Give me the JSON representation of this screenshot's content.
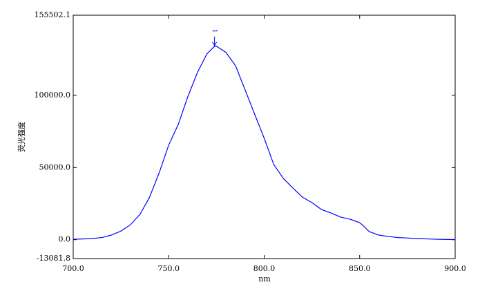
{
  "chart_data": {
    "type": "line",
    "x_label": "nm",
    "y_label": "荧光强度",
    "x": [
      700,
      705,
      710,
      715,
      720,
      725,
      730,
      735,
      740,
      745,
      750,
      755,
      760,
      765,
      770,
      774,
      775,
      780,
      785,
      790,
      795,
      800,
      805,
      810,
      815,
      820,
      825,
      830,
      835,
      840,
      845,
      850,
      852,
      855,
      860,
      865,
      870,
      880,
      890,
      900
    ],
    "series": [
      {
        "color": "#0000ff",
        "values": [
          300,
          500,
          800,
          1500,
          3200,
          6000,
          10400,
          17600,
          29500,
          46300,
          65500,
          79800,
          99000,
          115700,
          128700,
          134000,
          134000,
          129700,
          120500,
          103800,
          87000,
          70300,
          52100,
          42500,
          35800,
          29500,
          25700,
          20900,
          18500,
          15700,
          14200,
          11800,
          9600,
          5600,
          3200,
          2200,
          1500,
          800,
          300,
          100
        ]
      }
    ],
    "annotation": {
      "text": "1",
      "x": 774,
      "y": 134000
    },
    "xlim": [
      700,
      900
    ],
    "xticks": [
      {
        "value": 700,
        "label": "700.0"
      },
      {
        "value": 750,
        "label": "750.0"
      },
      {
        "value": 800,
        "label": "800.0"
      },
      {
        "value": 850,
        "label": "850.0"
      },
      {
        "value": 900,
        "label": "900.0"
      }
    ],
    "ylim": [
      -13081.8,
      155502.1
    ],
    "yticks": [
      -13081.8,
      {
        "value": 0,
        "label": "0.0"
      },
      {
        "value": 50000,
        "label": "50000.0"
      },
      {
        "value": 100000,
        "label": "100000.0"
      },
      155502.1
    ]
  }
}
